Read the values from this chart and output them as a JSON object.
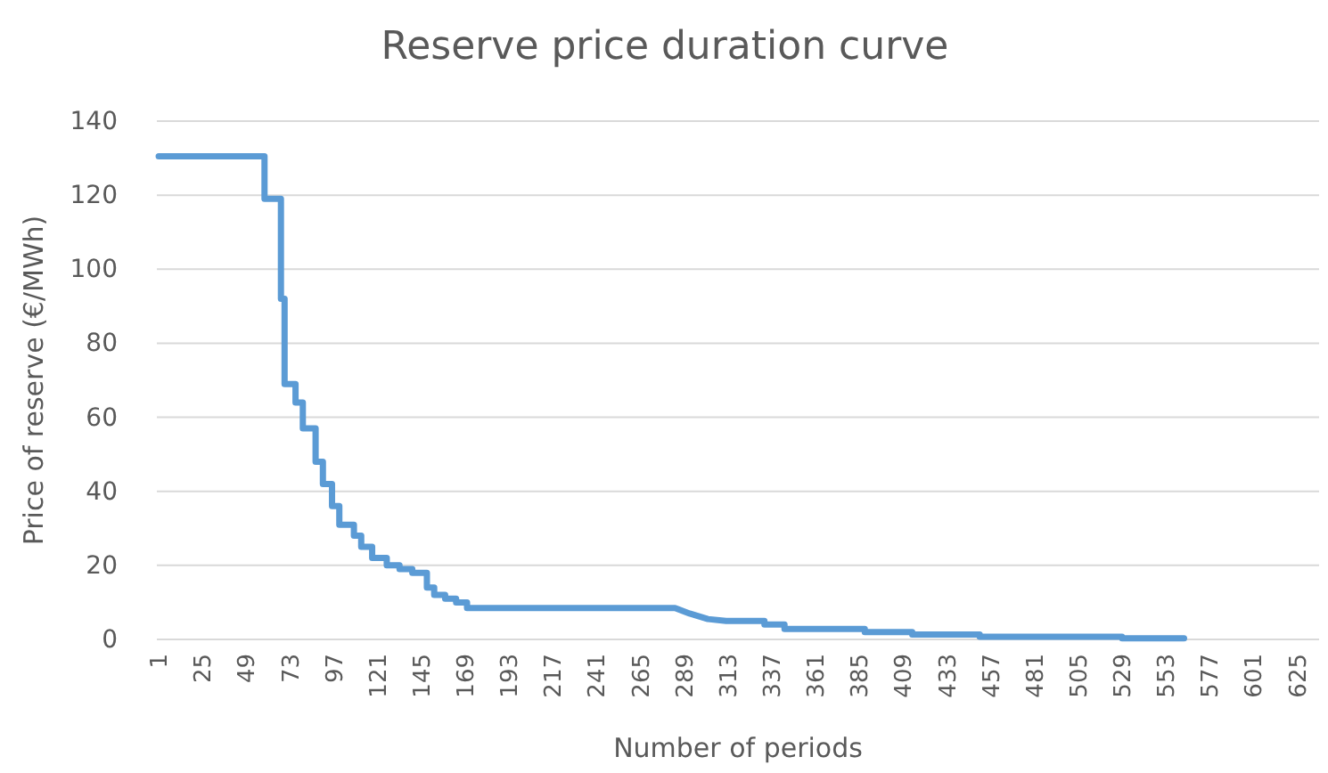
{
  "chart_data": {
    "type": "line",
    "title": "Reserve price duration curve",
    "xlabel": "Number of periods",
    "ylabel": "Price of reserve (€/MWh)",
    "x": [
      1,
      59,
      59,
      68,
      68,
      70,
      70,
      76,
      76,
      80,
      80,
      87,
      87,
      91,
      91,
      96,
      96,
      100,
      100,
      108,
      108,
      112,
      112,
      118,
      118,
      126,
      126,
      133,
      133,
      140,
      140,
      148,
      148,
      152,
      152,
      158,
      158,
      164,
      164,
      170,
      170,
      284,
      292,
      302,
      312,
      333,
      333,
      344,
      344,
      388,
      388,
      414,
      414,
      451,
      451,
      529,
      529,
      563
    ],
    "series": [
      {
        "color": "#5b9bd5",
        "values": [
          130.5,
          130.5,
          119,
          119,
          92,
          92,
          69,
          69,
          64,
          64,
          57,
          57,
          48,
          48,
          42,
          42,
          36,
          36,
          31,
          31,
          28,
          28,
          25,
          25,
          22,
          22,
          20,
          20,
          19,
          19,
          18,
          18,
          14,
          14,
          12,
          12,
          11,
          11,
          10,
          10,
          8.5,
          8.5,
          7,
          5.5,
          5,
          5,
          4,
          4,
          2.8,
          2.8,
          2,
          2,
          1.3,
          1.3,
          0.7,
          0.7,
          0.3,
          0.3
        ]
      }
    ],
    "xlim": [
      0,
      637
    ],
    "xticks": [
      1,
      25,
      49,
      73,
      97,
      121,
      145,
      169,
      193,
      217,
      241,
      265,
      289,
      313,
      337,
      361,
      385,
      409,
      433,
      457,
      481,
      505,
      529,
      553,
      577,
      601,
      625
    ],
    "ylim": [
      0,
      140
    ],
    "yticks": [
      0,
      20,
      40,
      60,
      80,
      100,
      120,
      140
    ],
    "grid": "y",
    "marker": "none",
    "line_style": "solid"
  }
}
